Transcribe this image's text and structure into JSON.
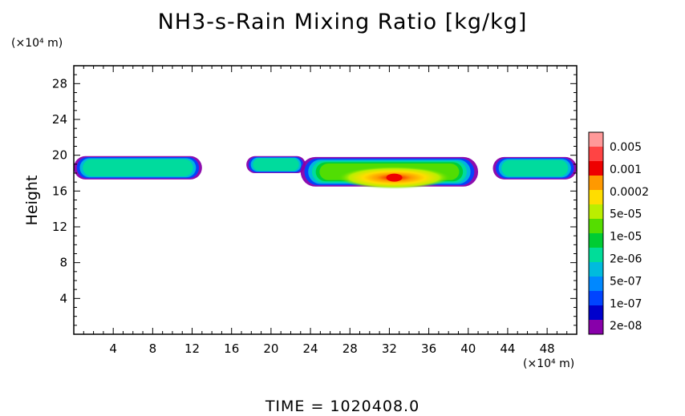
{
  "chart_data": {
    "type": "heatmap",
    "title": "NH3-s-Rain Mixing Ratio [kg/kg]",
    "ylabel": "Height",
    "x_unit": "(×10⁴ m)",
    "y_unit": "(×10⁴ m)",
    "footer": "TIME =  1020408.0",
    "xlim": [
      0,
      51
    ],
    "ylim": [
      0,
      30
    ],
    "x_ticks": [
      4,
      8,
      12,
      16,
      20,
      24,
      28,
      32,
      36,
      40,
      44,
      48
    ],
    "y_ticks": [
      4,
      8,
      12,
      16,
      20,
      24,
      28
    ],
    "colorbar": {
      "labels": [
        "0.005",
        "0.001",
        "0.0002",
        "5e-05",
        "1e-05",
        "2e-06",
        "5e-07",
        "1e-07",
        "2e-08"
      ],
      "colors": [
        "#ff9999",
        "#ff4444",
        "#ee0000",
        "#ff9900",
        "#ffdd00",
        "#bbee00",
        "#55dd00",
        "#00cc33",
        "#00dd99",
        "#00bbdd",
        "#0088ff",
        "#0044ff",
        "#0000cc",
        "#8800aa"
      ]
    },
    "regions": [
      {
        "x_start": 0,
        "x_end": 13,
        "y_bottom": 17.3,
        "y_top": 19.9,
        "peak": "1e-06"
      },
      {
        "x_start": 17.5,
        "x_end": 23.5,
        "y_bottom": 18.0,
        "y_top": 19.9,
        "peak": "1e-06"
      },
      {
        "x_start": 23,
        "x_end": 41,
        "y_bottom": 16.5,
        "y_top": 19.8,
        "peak": "0.001",
        "peak_x": 32.5,
        "peak_y": 17.5
      },
      {
        "x_start": 42.5,
        "x_end": 51,
        "y_bottom": 17.3,
        "y_top": 19.8,
        "peak": "1e-06"
      }
    ]
  }
}
